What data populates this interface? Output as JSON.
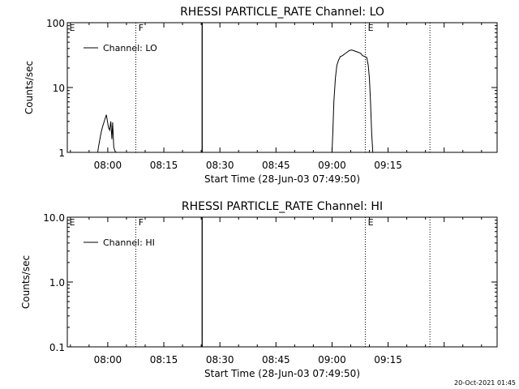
{
  "footer": {
    "timestamp": "20-Oct-2021 01:45"
  },
  "chart_data": [
    {
      "type": "line",
      "title": "RHESSI PARTICLE_RATE Channel: LO",
      "ylabel": "Counts/sec",
      "xlabel": "Start Time (28-Jun-03 07:49:50)",
      "yscale": "log",
      "ylim": [
        1,
        100
      ],
      "xlim_minutes": [
        -10.83,
        104.17
      ],
      "x_ticks": [
        "08:00",
        "08:15",
        "08:30",
        "08:45",
        "09:00",
        "09:15"
      ],
      "x_tick_minutes": [
        0,
        15,
        30,
        45,
        60,
        75
      ],
      "y_tick_labels": [
        "1",
        "10",
        "100"
      ],
      "y_tick_values": [
        1,
        10,
        100
      ],
      "legend": "top-left",
      "series": [
        {
          "name": "Channel: LO",
          "segments": [
            [
              [
                -2.7,
                0.95
              ],
              [
                -2.5,
                1.2
              ],
              [
                -2.2,
                1.5
              ],
              [
                -1.8,
                2.0
              ],
              [
                -1.4,
                2.5
              ],
              [
                -1.1,
                2.8
              ],
              [
                -0.8,
                3.2
              ],
              [
                -0.4,
                3.8
              ],
              [
                -0.1,
                3.0
              ],
              [
                0.2,
                2.4
              ],
              [
                0.5,
                2.2
              ],
              [
                0.8,
                3.0
              ],
              [
                1.1,
                1.6
              ],
              [
                1.3,
                2.9
              ],
              [
                1.6,
                1.2
              ],
              [
                1.9,
                1.05
              ],
              [
                2.2,
                0.95
              ]
            ],
            [
              [
                60.0,
                0.95
              ],
              [
                60.2,
                2.0
              ],
              [
                60.5,
                6.0
              ],
              [
                60.9,
                14
              ],
              [
                61.3,
                22
              ],
              [
                61.7,
                26
              ],
              [
                62.2,
                30
              ],
              [
                62.8,
                31
              ],
              [
                63.4,
                33
              ],
              [
                64.0,
                35
              ],
              [
                64.6,
                37
              ],
              [
                65.2,
                38
              ],
              [
                65.8,
                37
              ],
              [
                66.4,
                36
              ],
              [
                67.0,
                35
              ],
              [
                67.6,
                34
              ],
              [
                68.2,
                31
              ],
              [
                68.8,
                30
              ],
              [
                69.3,
                29
              ],
              [
                69.7,
                22
              ],
              [
                70.0,
                14
              ],
              [
                70.3,
                6
              ],
              [
                70.6,
                2.0
              ],
              [
                70.9,
                1.0
              ]
            ]
          ]
        }
      ],
      "annotations": {
        "solid_lines_minutes": [
          25.25
        ],
        "dotted_lines_minutes": [
          7.5,
          68.9,
          86.2
        ],
        "flags": [
          {
            "label": "E",
            "minute": -10.3
          },
          {
            "label": "F",
            "minute": 8.2
          },
          {
            "label": "E",
            "minute": 69.6
          }
        ]
      }
    },
    {
      "type": "line",
      "title": "RHESSI PARTICLE_RATE Channel: HI",
      "ylabel": "Counts/sec",
      "xlabel": "Start Time (28-Jun-03 07:49:50)",
      "yscale": "log",
      "ylim": [
        0.1,
        10
      ],
      "xlim_minutes": [
        -10.83,
        104.17
      ],
      "x_ticks": [
        "08:00",
        "08:15",
        "08:30",
        "08:45",
        "09:00",
        "09:15"
      ],
      "x_tick_minutes": [
        0,
        15,
        30,
        45,
        60,
        75
      ],
      "y_tick_labels": [
        "0.1",
        "1.0",
        "10.0"
      ],
      "y_tick_values": [
        0.1,
        1,
        10
      ],
      "legend": "top-left",
      "series": [
        {
          "name": "Channel: HI",
          "segments": []
        }
      ],
      "annotations": {
        "solid_lines_minutes": [
          25.25
        ],
        "dotted_lines_minutes": [
          7.5,
          68.9,
          86.2
        ],
        "flags": [
          {
            "label": "E",
            "minute": -10.3
          },
          {
            "label": "F",
            "minute": 8.2
          },
          {
            "label": "E",
            "minute": 69.6
          }
        ]
      }
    }
  ]
}
